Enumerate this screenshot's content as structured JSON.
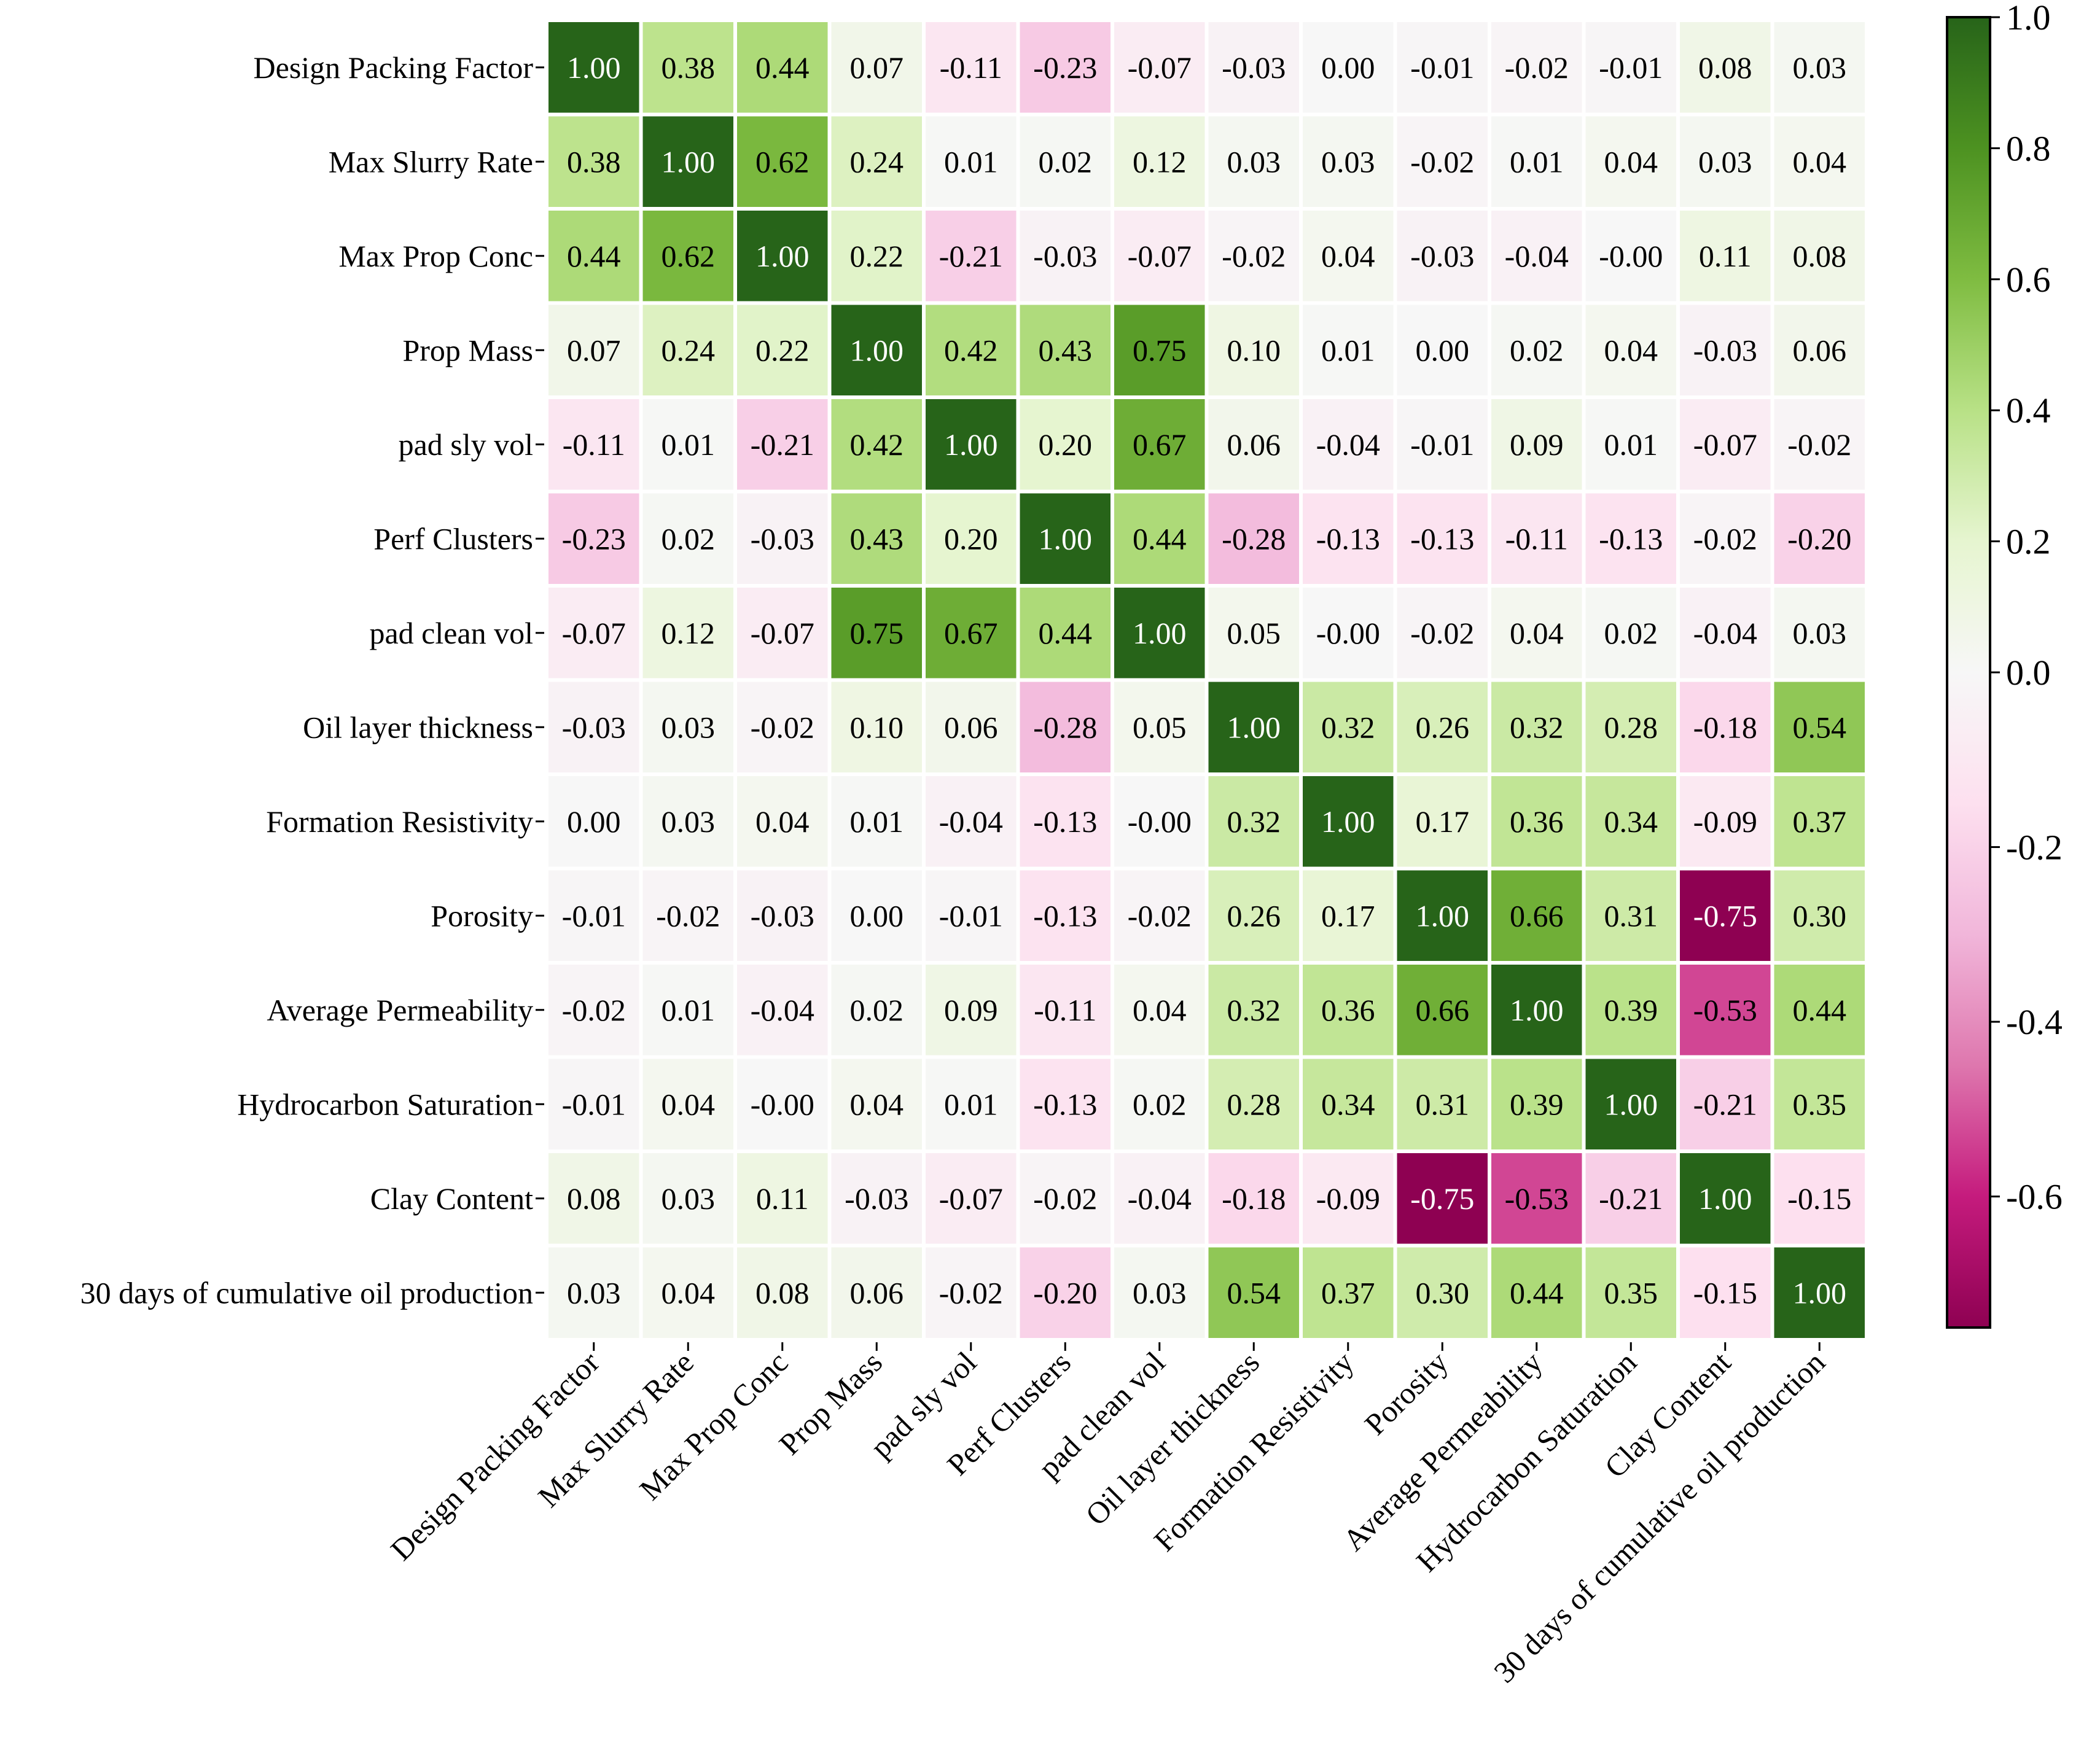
{
  "chart_data": {
    "type": "heatmap",
    "labels": [
      "Design Packing Factor",
      "Max Slurry Rate",
      "Max Prop Conc",
      "Prop Mass",
      "pad sly vol",
      "Perf Clusters",
      "pad clean vol",
      "Oil layer thickness",
      "Formation Resistivity",
      "Porosity",
      "Average Permeability",
      "Hydrocarbon Saturation",
      "Clay Content",
      "30 days of cumulative oil production"
    ],
    "value_labels": [
      [
        "1.00",
        "0.38",
        "0.44",
        "0.07",
        "-0.11",
        "-0.23",
        "-0.07",
        "-0.03",
        "0.00",
        "-0.01",
        "-0.02",
        "-0.01",
        "0.08",
        "0.03"
      ],
      [
        "0.38",
        "1.00",
        "0.62",
        "0.24",
        "0.01",
        "0.02",
        "0.12",
        "0.03",
        "0.03",
        "-0.02",
        "0.01",
        "0.04",
        "0.03",
        "0.04"
      ],
      [
        "0.44",
        "0.62",
        "1.00",
        "0.22",
        "-0.21",
        "-0.03",
        "-0.07",
        "-0.02",
        "0.04",
        "-0.03",
        "-0.04",
        "-0.00",
        "0.11",
        "0.08"
      ],
      [
        "0.07",
        "0.24",
        "0.22",
        "1.00",
        "0.42",
        "0.43",
        "0.75",
        "0.10",
        "0.01",
        "0.00",
        "0.02",
        "0.04",
        "-0.03",
        "0.06"
      ],
      [
        "-0.11",
        "0.01",
        "-0.21",
        "0.42",
        "1.00",
        "0.20",
        "0.67",
        "0.06",
        "-0.04",
        "-0.01",
        "0.09",
        "0.01",
        "-0.07",
        "-0.02"
      ],
      [
        "-0.23",
        "0.02",
        "-0.03",
        "0.43",
        "0.20",
        "1.00",
        "0.44",
        "-0.28",
        "-0.13",
        "-0.13",
        "-0.11",
        "-0.13",
        "-0.02",
        "-0.20"
      ],
      [
        "-0.07",
        "0.12",
        "-0.07",
        "0.75",
        "0.67",
        "0.44",
        "1.00",
        "0.05",
        "-0.00",
        "-0.02",
        "0.04",
        "0.02",
        "-0.04",
        "0.03"
      ],
      [
        "-0.03",
        "0.03",
        "-0.02",
        "0.10",
        "0.06",
        "-0.28",
        "0.05",
        "1.00",
        "0.32",
        "0.26",
        "0.32",
        "0.28",
        "-0.18",
        "0.54"
      ],
      [
        "0.00",
        "0.03",
        "0.04",
        "0.01",
        "-0.04",
        "-0.13",
        "-0.00",
        "0.32",
        "1.00",
        "0.17",
        "0.36",
        "0.34",
        "-0.09",
        "0.37"
      ],
      [
        "-0.01",
        "-0.02",
        "-0.03",
        "0.00",
        "-0.01",
        "-0.13",
        "-0.02",
        "0.26",
        "0.17",
        "1.00",
        "0.66",
        "0.31",
        "-0.75",
        "0.30"
      ],
      [
        "-0.02",
        "0.01",
        "-0.04",
        "0.02",
        "0.09",
        "-0.11",
        "0.04",
        "0.32",
        "0.36",
        "0.66",
        "1.00",
        "0.39",
        "-0.53",
        "0.44"
      ],
      [
        "-0.01",
        "0.04",
        "-0.00",
        "0.04",
        "0.01",
        "-0.13",
        "0.02",
        "0.28",
        "0.34",
        "0.31",
        "0.39",
        "1.00",
        "-0.21",
        "0.35"
      ],
      [
        "0.08",
        "0.03",
        "0.11",
        "-0.03",
        "-0.07",
        "-0.02",
        "-0.04",
        "-0.18",
        "-0.09",
        "-0.75",
        "-0.53",
        "-0.21",
        "1.00",
        "-0.15"
      ],
      [
        "0.03",
        "0.04",
        "0.08",
        "0.06",
        "-0.02",
        "-0.20",
        "0.03",
        "0.54",
        "0.37",
        "0.30",
        "0.44",
        "0.35",
        "-0.15",
        "1.00"
      ]
    ],
    "colorbar": {
      "colormap": "PiYG",
      "vmin": -0.75,
      "vmax": 1.0,
      "ticks": [
        "1.0",
        "0.8",
        "0.6",
        "0.4",
        "0.2",
        "0.0",
        "-0.2",
        "-0.4",
        "-0.6"
      ]
    },
    "title": "",
    "xlabel": "",
    "ylabel": ""
  }
}
